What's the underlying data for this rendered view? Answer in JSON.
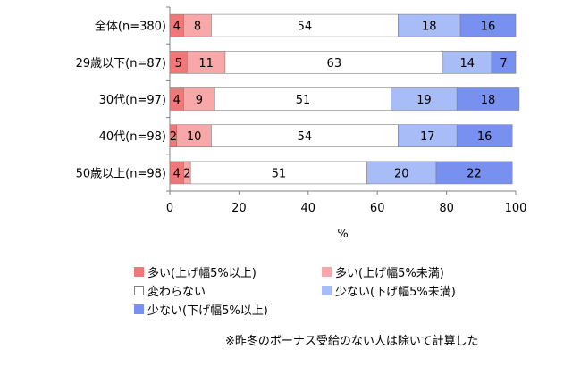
{
  "chart_data": {
    "type": "bar",
    "orientation": "horizontal",
    "stacked": true,
    "categories": [
      "全体(n=380)",
      "29歳以下(n=87)",
      "30代(n=97)",
      "40代(n=98)",
      "50歳以上(n=98)"
    ],
    "series": [
      {
        "name": "多い(上げ幅5%以上)",
        "color": "#f07878",
        "values": [
          4,
          5,
          4,
          2,
          4
        ]
      },
      {
        "name": "多い(上げ幅5%未満)",
        "color": "#f8a8a8",
        "values": [
          8,
          11,
          9,
          10,
          2
        ]
      },
      {
        "name": "変わらない",
        "color": "#ffffff",
        "values": [
          54,
          63,
          51,
          54,
          51
        ]
      },
      {
        "name": "少ない(下げ幅5%未満)",
        "color": "#a8bcf8",
        "values": [
          18,
          14,
          19,
          17,
          20
        ]
      },
      {
        "name": "少ない(下げ幅5%以上)",
        "color": "#7890f0",
        "values": [
          16,
          7,
          18,
          16,
          22
        ]
      }
    ],
    "xlabel": "%",
    "xlim": [
      0,
      100
    ],
    "xticks": [
      "0",
      "20",
      "40",
      "60",
      "80",
      "100"
    ],
    "grid": false,
    "legend_position": "bottom"
  },
  "note": "※昨冬のボーナス受給のない人は除いて計算した"
}
